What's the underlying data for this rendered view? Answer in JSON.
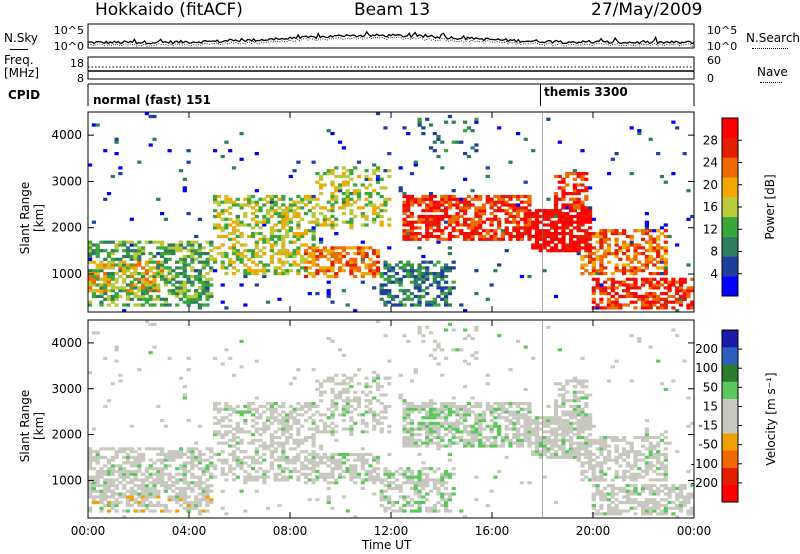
{
  "header": {
    "station": "Hokkaido (fitACF)",
    "beam": "Beam 13",
    "date": "27/May/2009"
  },
  "noise_panel": {
    "left_label": "N.Sky",
    "right_label": "N.Search",
    "ticks_left": [
      "10^5",
      "10^0"
    ],
    "ticks_right": [
      "10^5",
      "10^0"
    ]
  },
  "freq_panel": {
    "left_label_line1": "Freq.",
    "left_label_line2": "[MHz]",
    "right_label": "Nave",
    "ticks_left": [
      "18",
      "8"
    ],
    "ticks_right": [
      "60",
      "0"
    ]
  },
  "cpid_panel": {
    "label": "CPID",
    "modes": [
      {
        "name": "normal (fast) 151",
        "start_hour": 0
      },
      {
        "name": "themis 3300",
        "start_hour": 18
      }
    ]
  },
  "colors": {
    "power_scale": [
      "#0000ff",
      "#1f3f9f",
      "#2e7d5e",
      "#3aa63a",
      "#b9c93a",
      "#f2a800",
      "#f06a00",
      "#e61e00",
      "#ff0000"
    ],
    "velocity_scale": [
      "#1a1aa6",
      "#2d5fbf",
      "#2e7d2e",
      "#5ac85a",
      "#c8c8c0",
      "#c8c8c0",
      "#f0a000",
      "#f06a00",
      "#e61e00",
      "#ff0000"
    ]
  },
  "chart_data": [
    {
      "type": "heatmap",
      "title": "",
      "xlabel": "Time UT",
      "ylabel": "Slant Range [km]",
      "x_ticks": [
        "00:00",
        "04:00",
        "08:00",
        "12:00",
        "16:00",
        "20:00",
        "00:00"
      ],
      "y_ticks": [
        "1000",
        "2000",
        "3000",
        "4000"
      ],
      "xlim_hours": [
        0,
        24
      ],
      "ylim_km": [
        180,
        4500
      ],
      "colorbar": {
        "label": "Power [dB]",
        "ticks": [
          "4",
          "8",
          "12",
          "16",
          "20",
          "24",
          "28"
        ],
        "range": [
          0,
          30
        ]
      }
    },
    {
      "type": "heatmap",
      "title": "",
      "xlabel": "Time UT",
      "ylabel": "Slant Range [km]",
      "x_ticks": [
        "00:00",
        "04:00",
        "08:00",
        "12:00",
        "16:00",
        "20:00",
        "00:00"
      ],
      "y_ticks": [
        "1000",
        "2000",
        "3000",
        "4000"
      ],
      "xlim_hours": [
        0,
        24
      ],
      "ylim_km": [
        180,
        4500
      ],
      "colorbar": {
        "label": "Velocity [m s⁻¹]",
        "ticks": [
          "200",
          "100",
          "50",
          "15",
          "-15",
          "-50",
          "-100",
          "-200"
        ],
        "range": [
          -250,
          250
        ]
      }
    }
  ]
}
